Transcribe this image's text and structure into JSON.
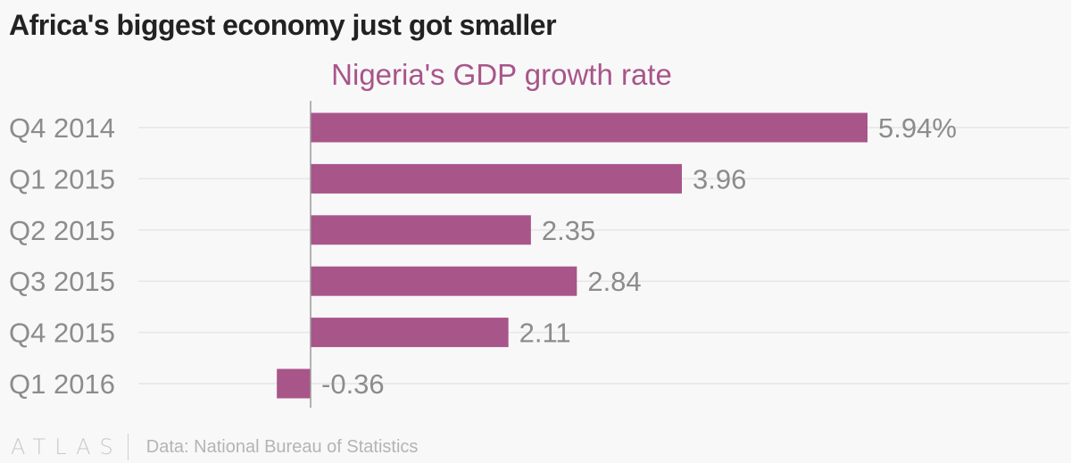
{
  "headline": "Africa's biggest economy just got smaller",
  "footer": {
    "logo": "ATLAS",
    "source": "Data: National Bureau of Statistics"
  },
  "colors": {
    "bar": "#a8558a",
    "title": "#a8558a",
    "label": "#8c8c8c",
    "grid": "#e6e6e6",
    "axis": "#9a9a9a"
  },
  "chart_data": {
    "type": "bar",
    "orientation": "horizontal",
    "title": "Nigeria's GDP growth rate",
    "xlabel": "",
    "ylabel": "",
    "categories": [
      "Q4 2014",
      "Q1 2015",
      "Q2 2015",
      "Q3 2015",
      "Q4 2015",
      "Q1 2016"
    ],
    "values": [
      5.94,
      3.96,
      2.35,
      2.84,
      2.11,
      -0.36
    ],
    "value_labels": [
      "5.94%",
      "3.96",
      "2.35",
      "2.84",
      "2.11",
      "-0.36"
    ],
    "xlim": [
      -0.36,
      5.94
    ],
    "grid": true
  }
}
